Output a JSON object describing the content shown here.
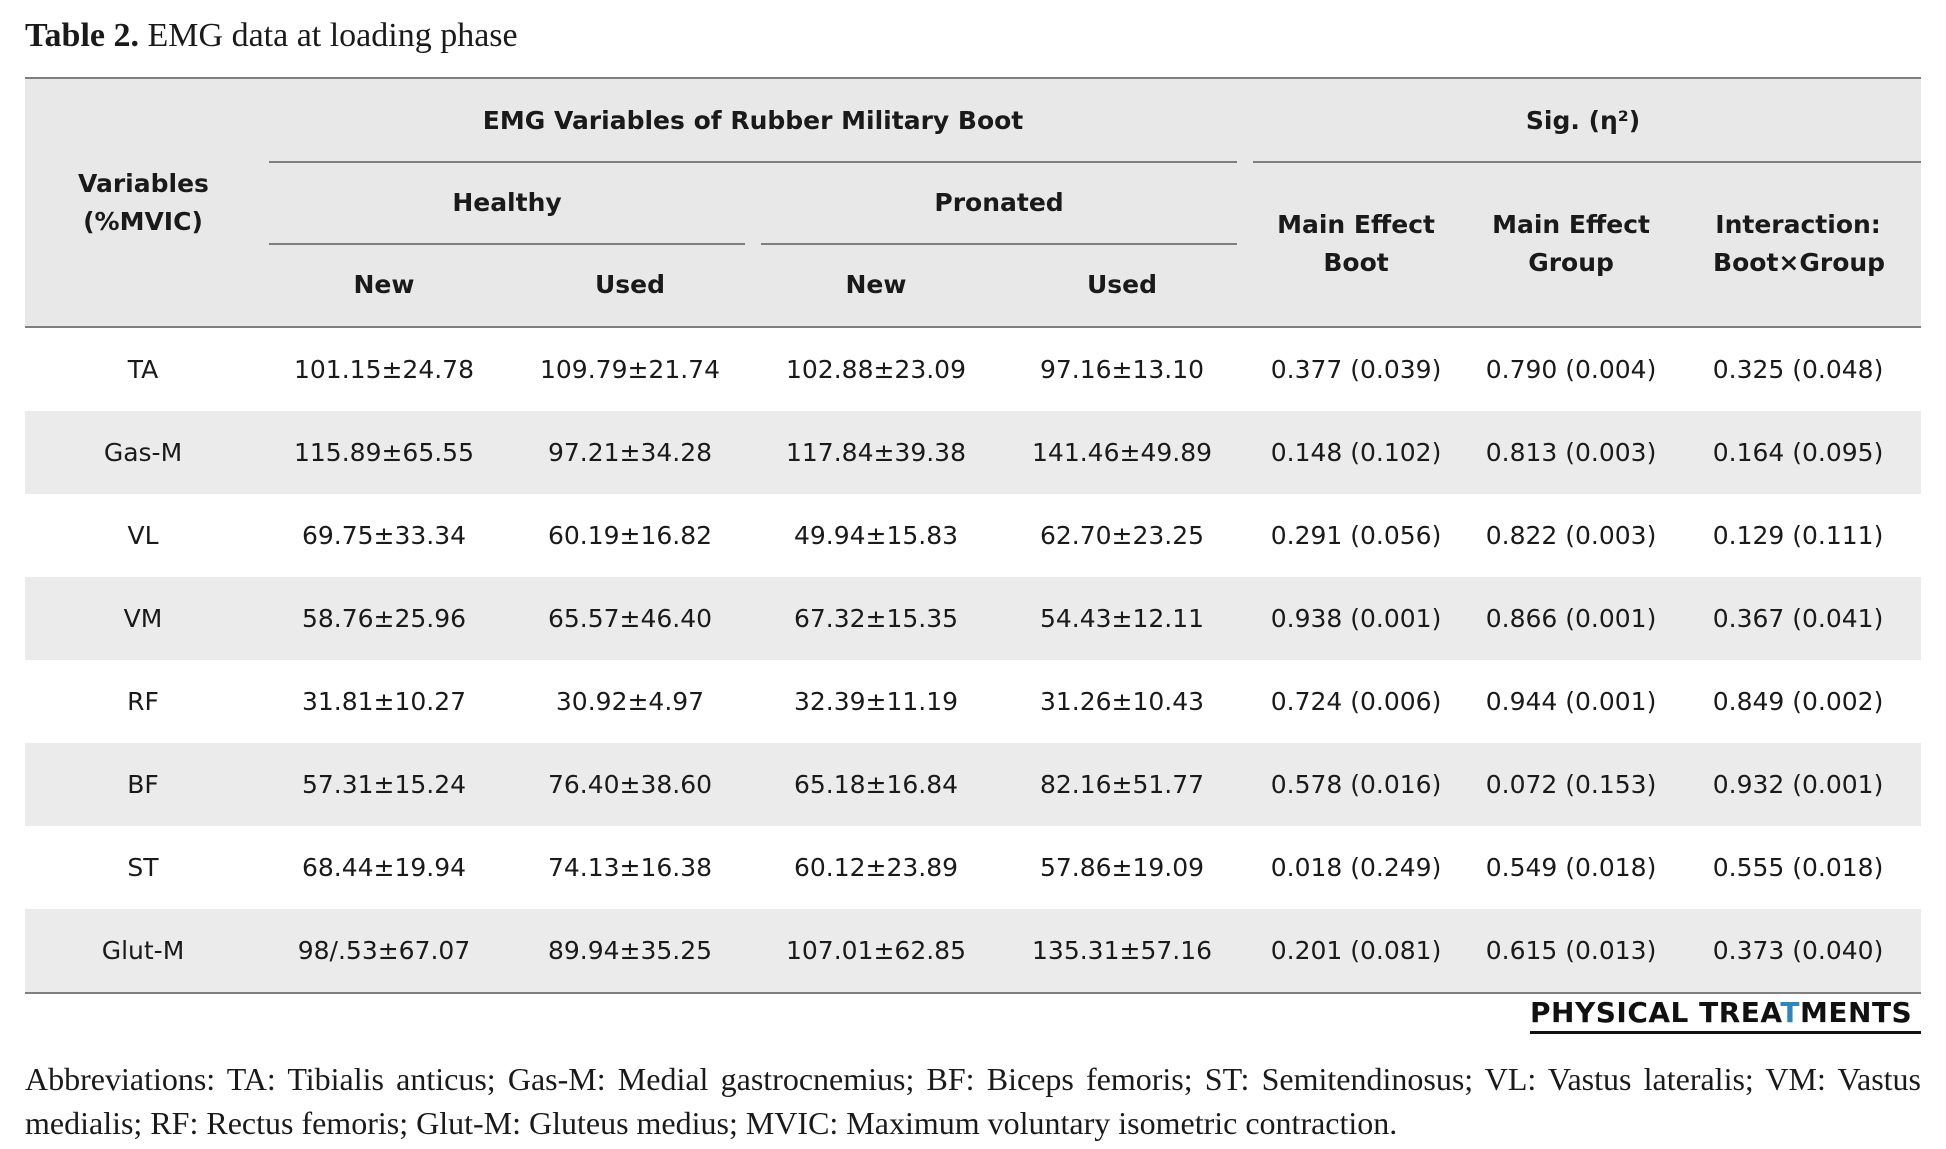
{
  "caption": {
    "label": "Table 2.",
    "title": "EMG data at loading phase"
  },
  "table": {
    "header": {
      "variables": "Variables (%MVIC)",
      "group_title": "EMG Variables of Rubber Military Boot",
      "sig_title": "Sig. (η²)",
      "healthy": "Healthy",
      "pronated": "Pronated",
      "new": "New",
      "used": "Used",
      "main_effect_boot": "Main Effect Boot",
      "main_effect_group": "Main Effect Group",
      "interaction": "Interaction: Boot×Group"
    },
    "rows": [
      {
        "variable": "TA",
        "healthy_new": "101.15±24.78",
        "healthy_used": "109.79±21.74",
        "pronated_new": "102.88±23.09",
        "pronated_used": "97.16±13.10",
        "main_boot": "0.377 (0.039)",
        "main_group": "0.790 (0.004)",
        "interaction": "0.325 (0.048)"
      },
      {
        "variable": "Gas-M",
        "healthy_new": "115.89±65.55",
        "healthy_used": "97.21±34.28",
        "pronated_new": "117.84±39.38",
        "pronated_used": "141.46±49.89",
        "main_boot": "0.148 (0.102)",
        "main_group": "0.813 (0.003)",
        "interaction": "0.164 (0.095)"
      },
      {
        "variable": "VL",
        "healthy_new": "69.75±33.34",
        "healthy_used": "60.19±16.82",
        "pronated_new": "49.94±15.83",
        "pronated_used": "62.70±23.25",
        "main_boot": "0.291 (0.056)",
        "main_group": "0.822 (0.003)",
        "interaction": "0.129 (0.111)"
      },
      {
        "variable": "VM",
        "healthy_new": "58.76±25.96",
        "healthy_used": "65.57±46.40",
        "pronated_new": "67.32±15.35",
        "pronated_used": "54.43±12.11",
        "main_boot": "0.938 (0.001)",
        "main_group": "0.866 (0.001)",
        "interaction": "0.367 (0.041)"
      },
      {
        "variable": "RF",
        "healthy_new": "31.81±10.27",
        "healthy_used": "30.92±4.97",
        "pronated_new": "32.39±11.19",
        "pronated_used": "31.26±10.43",
        "main_boot": "0.724 (0.006)",
        "main_group": "0.944 (0.001)",
        "interaction": "0.849 (0.002)"
      },
      {
        "variable": "BF",
        "healthy_new": "57.31±15.24",
        "healthy_used": "76.40±38.60",
        "pronated_new": "65.18±16.84",
        "pronated_used": "82.16±51.77",
        "main_boot": "0.578 (0.016)",
        "main_group": "0.072 (0.153)",
        "interaction": "0.932 (0.001)"
      },
      {
        "variable": "ST",
        "healthy_new": "68.44±19.94",
        "healthy_used": "74.13±16.38",
        "pronated_new": "60.12±23.89",
        "pronated_used": "57.86±19.09",
        "main_boot": "0.018 (0.249)",
        "main_group": "0.549 (0.018)",
        "interaction": "0.555 (0.018)"
      },
      {
        "variable": "Glut-M",
        "healthy_new": "98/.53±67.07",
        "healthy_used": "89.94±35.25",
        "pronated_new": "107.01±62.85",
        "pronated_used": "135.31±57.16",
        "main_boot": "0.201 (0.081)",
        "main_group": "0.615 (0.013)",
        "interaction": "0.373 (0.040)"
      }
    ]
  },
  "logo": {
    "text_before": "PHYSICAL TREA",
    "text_mark": "T",
    "text_after": "MENTS",
    "accent_color": "#2e86c1"
  },
  "abbreviations": "Abbreviations: TA: Tibialis anticus; Gas-M: Medial gastrocnemius; BF: Biceps femoris; ST: Semitendinosus; VL: Vastus lateralis; VM: Vastus medialis; RF: Rectus femoris; Glut-M: Gluteus medius; MVIC: Maximum voluntary isometric contraction."
}
